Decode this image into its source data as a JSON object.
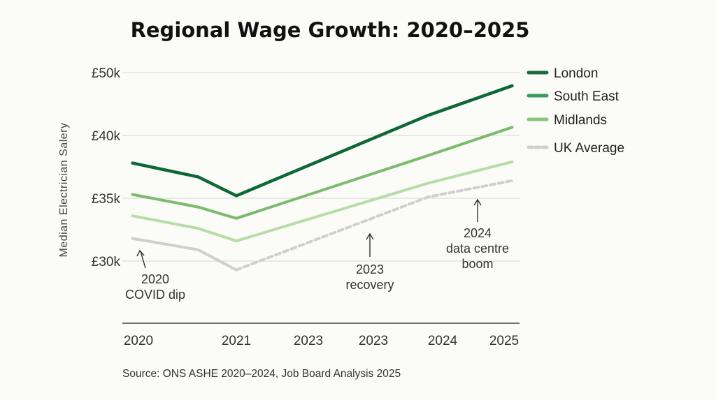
{
  "chart_data": {
    "type": "line",
    "title": "Regional Wage Growth: 2020–2025",
    "ylabel": "Median Electrician Salery",
    "xlabel": "",
    "x_tick_labels": [
      "2020",
      "2021",
      "2023",
      "2023",
      "2024",
      "2025"
    ],
    "y_ticks": [
      {
        "label": "£50k",
        "value": 50000
      },
      {
        "label": "£40k",
        "value": 40000
      },
      {
        "label": "£35k",
        "value": 35000
      },
      {
        "label": "£30k",
        "value": 30000
      }
    ],
    "grid": true,
    "legend_placement": "right",
    "series": [
      {
        "name": "London",
        "color": "#0d6836",
        "legend_color": "#1a6b40",
        "dashed": false,
        "points": [
          [
            -0.06,
            37800
          ],
          [
            0.61,
            36700
          ],
          [
            1,
            35200
          ],
          [
            3.79,
            43200
          ],
          [
            5.13,
            47900
          ]
        ]
      },
      {
        "name": "South East",
        "color": "#7cbb6c",
        "legend_color": "#3d9a5e",
        "dashed": false,
        "points": [
          [
            -0.06,
            35300
          ],
          [
            0.61,
            34300
          ],
          [
            1,
            33400
          ],
          [
            3.79,
            38400
          ],
          [
            5.13,
            41300
          ]
        ]
      },
      {
        "name": "Midlands",
        "color": "#b7dda8",
        "legend_color": "#8cc47c",
        "dashed": false,
        "points": [
          [
            -0.06,
            33600
          ],
          [
            0.61,
            32600
          ],
          [
            1,
            31600
          ],
          [
            3.79,
            36200
          ],
          [
            5.13,
            37900
          ]
        ]
      },
      {
        "name": "UK Average",
        "color": "#cfcfcf",
        "legend_color": "#d0d0d0",
        "dashed": true,
        "dashed_from_point": 2,
        "points": [
          [
            -0.06,
            31800
          ],
          [
            0.61,
            30900
          ],
          [
            1,
            29300
          ],
          [
            3.79,
            35100
          ],
          [
            5.13,
            36400
          ]
        ]
      }
    ],
    "annotations": [
      {
        "lines": [
          "2020",
          "COVID dip"
        ]
      },
      {
        "lines": [
          "2023",
          "recovery"
        ]
      },
      {
        "lines": [
          "2024",
          "data centre",
          "boom"
        ]
      }
    ],
    "source": "Source: ONS ASHE 2020–2024, Job Board Analysis 2025"
  }
}
